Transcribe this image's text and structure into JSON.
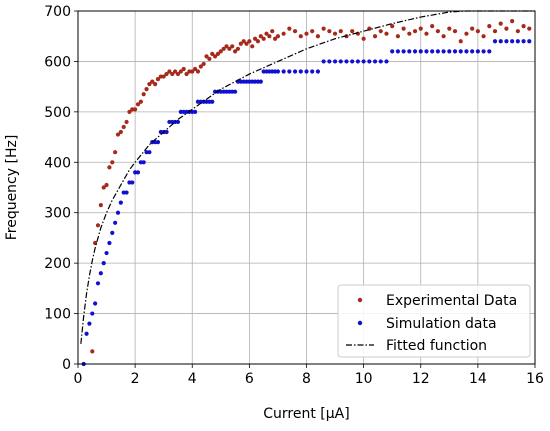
{
  "chart_data": {
    "type": "scatter",
    "title": "",
    "xlabel": "Current [μA]",
    "ylabel": "Frequency [Hz]",
    "xlim": [
      0,
      16
    ],
    "ylim": [
      0,
      700
    ],
    "xticks": [
      0,
      2,
      4,
      6,
      8,
      10,
      12,
      14,
      16
    ],
    "yticks": [
      0,
      100,
      200,
      300,
      400,
      500,
      600,
      700
    ],
    "grid": true,
    "legend_position": "bottom-right",
    "series": [
      {
        "name": "Experimental Data",
        "kind": "scatter",
        "color": "#a52a1a",
        "x": [
          0.5,
          0.6,
          0.7,
          0.8,
          0.9,
          1.0,
          1.1,
          1.2,
          1.3,
          1.4,
          1.5,
          1.6,
          1.7,
          1.8,
          1.9,
          2.0,
          2.1,
          2.2,
          2.3,
          2.4,
          2.5,
          2.6,
          2.7,
          2.8,
          2.9,
          3.0,
          3.1,
          3.2,
          3.3,
          3.4,
          3.5,
          3.6,
          3.7,
          3.8,
          3.9,
          4.0,
          4.1,
          4.2,
          4.3,
          4.4,
          4.5,
          4.6,
          4.7,
          4.8,
          4.9,
          5.0,
          5.1,
          5.2,
          5.3,
          5.4,
          5.5,
          5.6,
          5.7,
          5.8,
          5.9,
          6.0,
          6.1,
          6.2,
          6.3,
          6.4,
          6.5,
          6.6,
          6.7,
          6.8,
          6.9,
          7.0,
          7.2,
          7.4,
          7.6,
          7.8,
          8.0,
          8.2,
          8.4,
          8.6,
          8.8,
          9.0,
          9.2,
          9.4,
          9.6,
          9.8,
          10.0,
          10.2,
          10.4,
          10.6,
          10.8,
          11.0,
          11.2,
          11.4,
          11.6,
          11.8,
          12.0,
          12.2,
          12.4,
          12.6,
          12.8,
          13.0,
          13.2,
          13.4,
          13.6,
          13.8,
          14.0,
          14.2,
          14.4,
          14.6,
          14.8,
          15.0,
          15.2,
          15.4,
          15.6,
          15.8
        ],
        "y": [
          25,
          240,
          275,
          315,
          350,
          355,
          390,
          400,
          420,
          455,
          460,
          470,
          480,
          500,
          505,
          505,
          515,
          520,
          535,
          545,
          555,
          560,
          555,
          565,
          570,
          570,
          575,
          580,
          575,
          580,
          575,
          580,
          585,
          575,
          580,
          580,
          585,
          580,
          590,
          595,
          610,
          605,
          615,
          610,
          615,
          620,
          625,
          630,
          625,
          630,
          620,
          625,
          635,
          640,
          635,
          640,
          630,
          645,
          640,
          650,
          645,
          655,
          650,
          660,
          645,
          650,
          655,
          665,
          660,
          650,
          655,
          660,
          650,
          665,
          660,
          655,
          660,
          650,
          660,
          655,
          645,
          665,
          650,
          660,
          655,
          670,
          650,
          665,
          655,
          660,
          665,
          655,
          670,
          660,
          650,
          665,
          660,
          640,
          655,
          665,
          660,
          650,
          670,
          660,
          675,
          665,
          680,
          660,
          670,
          665
        ]
      },
      {
        "name": "Simulation data",
        "kind": "scatter",
        "color": "#1010d0",
        "x": [
          0.2,
          0.3,
          0.4,
          0.5,
          0.6,
          0.7,
          0.8,
          0.9,
          1.0,
          1.1,
          1.2,
          1.3,
          1.4,
          1.5,
          1.6,
          1.7,
          1.8,
          1.9,
          2.0,
          2.1,
          2.2,
          2.3,
          2.4,
          2.5,
          2.6,
          2.7,
          2.8,
          2.9,
          3.0,
          3.1,
          3.2,
          3.3,
          3.4,
          3.5,
          3.6,
          3.7,
          3.8,
          3.9,
          4.0,
          4.1,
          4.2,
          4.3,
          4.4,
          4.5,
          4.6,
          4.7,
          4.8,
          4.9,
          5.0,
          5.1,
          5.2,
          5.3,
          5.4,
          5.5,
          5.6,
          5.7,
          5.8,
          5.9,
          6.0,
          6.1,
          6.2,
          6.3,
          6.4,
          6.5,
          6.6,
          6.7,
          6.8,
          6.9,
          7.0,
          7.2,
          7.4,
          7.6,
          7.8,
          8.0,
          8.2,
          8.4,
          8.6,
          8.8,
          9.0,
          9.2,
          9.4,
          9.6,
          9.8,
          10.0,
          10.2,
          10.4,
          10.6,
          10.8,
          11.0,
          11.2,
          11.4,
          11.6,
          11.8,
          12.0,
          12.2,
          12.4,
          12.6,
          12.8,
          13.0,
          13.2,
          13.4,
          13.6,
          13.8,
          14.0,
          14.2,
          14.4,
          14.6,
          14.8,
          15.0,
          15.2,
          15.4,
          15.6,
          15.8
        ],
        "y": [
          0,
          60,
          80,
          100,
          120,
          160,
          180,
          200,
          220,
          240,
          260,
          280,
          300,
          320,
          340,
          340,
          360,
          360,
          380,
          380,
          400,
          400,
          420,
          420,
          440,
          440,
          440,
          460,
          460,
          460,
          480,
          480,
          480,
          480,
          500,
          500,
          500,
          500,
          500,
          500,
          520,
          520,
          520,
          520,
          520,
          520,
          540,
          540,
          540,
          540,
          540,
          540,
          540,
          540,
          560,
          560,
          560,
          560,
          560,
          560,
          560,
          560,
          560,
          580,
          580,
          580,
          580,
          580,
          580,
          580,
          580,
          580,
          580,
          580,
          580,
          580,
          600,
          600,
          600,
          600,
          600,
          600,
          600,
          600,
          600,
          600,
          600,
          600,
          620,
          620,
          620,
          620,
          620,
          620,
          620,
          620,
          620,
          620,
          620,
          620,
          620,
          620,
          620,
          620,
          620,
          620,
          640,
          640,
          640,
          640,
          640,
          640,
          640
        ]
      },
      {
        "name": "Fitted function",
        "kind": "line",
        "style": "dash-dot",
        "color": "#000000",
        "x": [
          0.1,
          0.2,
          0.3,
          0.4,
          0.5,
          0.6,
          0.8,
          1.0,
          1.2,
          1.5,
          1.8,
          2.0,
          2.5,
          3.0,
          3.5,
          4.0,
          4.5,
          5.0,
          6.0,
          7.0,
          8.0,
          9.0,
          10.0,
          11.0,
          12.0,
          13.0,
          13.6,
          14.0,
          15.0,
          16.0
        ],
        "y": [
          40,
          95,
          140,
          175,
          205,
          230,
          270,
          300,
          325,
          355,
          385,
          400,
          435,
          460,
          485,
          505,
          525,
          545,
          575,
          600,
          625,
          645,
          660,
          675,
          688,
          698,
          703,
          708,
          718,
          728
        ]
      }
    ]
  }
}
